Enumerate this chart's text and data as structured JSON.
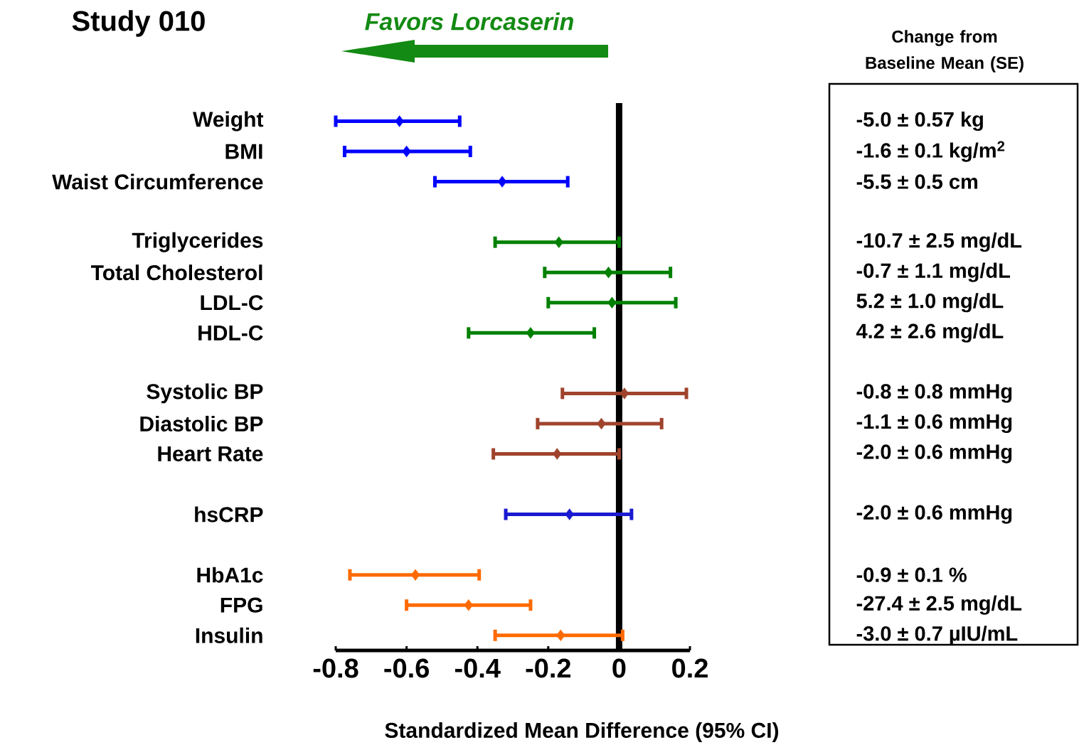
{
  "chart_data": {
    "type": "scatter",
    "orientation": "horizontal",
    "title": "Study 010",
    "xlabel": "Standardized Mean Difference (95% CI)",
    "annotations": [
      "Favors Lorcaserin",
      "Change from Baseline Mean (SE)",
      "-5.0 ± 0.57 kg",
      "-1.6 ± 0.1 kg/m$^{2}$",
      "-5.5 ± 0.5 cm",
      "-10.7 ± 2.5 mg/dL",
      "-0.7 ± 1.1 mg/dL",
      "5.2 ± 1.0 mg/dL",
      "4.2 ± 2.6 mg/dL",
      "-0.8 ± 0.8 mmHg",
      "-1.1 ± 0.6 mmHg",
      "-2.0 ± 0.6 mmHg",
      "-2.0 ± 0.6 mmHg",
      "-0.9 ± 0.1 %",
      "-27.4 ± 2.5 mg/dL",
      "-3.0 ± 0.7 µIU/mL"
    ],
    "categories": [
      "Weight",
      "BMI",
      "Waist Circumference",
      null,
      "Triglycerides",
      "Total Cholesterol",
      "LDL-C",
      "HDL-C",
      null,
      "Systolic BP",
      "Diastolic BP",
      "Heart Rate",
      null,
      "hsCRP",
      null,
      "HbA1c",
      "FPG",
      "Insulin"
    ],
    "values": [
      -0.62,
      -0.6,
      -0.33,
      null,
      -0.17,
      -0.03,
      -0.02,
      -0.25,
      null,
      0.015,
      -0.05,
      -0.175,
      null,
      -0.14,
      null,
      -0.575,
      -0.425,
      -0.165
    ],
    "errors": [
      [
        -0.8,
        -0.45
      ],
      [
        -0.775,
        -0.42
      ],
      [
        -0.52,
        -0.145
      ],
      null,
      [
        -0.35,
        0.0
      ],
      [
        -0.21,
        0.145
      ],
      [
        -0.2,
        0.16
      ],
      [
        -0.425,
        -0.07
      ],
      null,
      [
        -0.16,
        0.19
      ],
      [
        -0.23,
        0.12
      ],
      [
        -0.355,
        0.0
      ],
      null,
      [
        -0.32,
        0.035
      ],
      null,
      [
        -0.76,
        -0.395
      ],
      [
        -0.6,
        -0.25
      ],
      [
        -0.35,
        0.01
      ]
    ],
    "colors": [
      "#0000ff",
      "#0000ff",
      "#0000ff",
      null,
      "#008000",
      "#008000",
      "#008000",
      "#008000",
      null,
      "#a0432d",
      "#a0432d",
      "#a0432d",
      null,
      "#1a1ad0",
      null,
      "#ff6a00",
      "#ff6a00",
      "#ff6a00"
    ],
    "xlim": [
      -0.8,
      0.2
    ],
    "xticks": [
      -0.8,
      -0.6,
      -0.4,
      -0.2,
      0,
      0.2
    ],
    "ref_lines": [
      {
        "axis": "x",
        "value": 0,
        "color": "#000000"
      }
    ],
    "marker": "diamond"
  }
}
